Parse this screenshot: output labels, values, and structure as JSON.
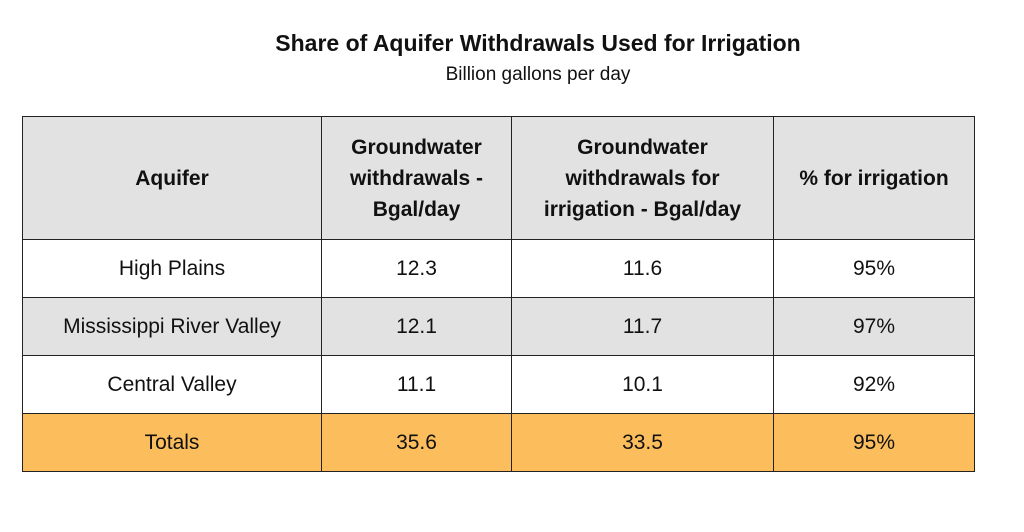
{
  "header": {
    "title": "Share of Aquifer Withdrawals Used for Irrigation",
    "subtitle": "Billion gallons per day"
  },
  "table": {
    "columns": [
      "Aquifer",
      "Groundwater withdrawals - Bgal/day",
      "Groundwater withdrawals for irrigation - Bgal/day",
      "% for irrigation"
    ],
    "rows": [
      [
        "High Plains",
        "12.3",
        "11.6",
        "95%"
      ],
      [
        "Mississippi River Valley",
        "12.1",
        "11.7",
        "97%"
      ],
      [
        "Central Valley",
        "11.1",
        "10.1",
        "92%"
      ]
    ],
    "totals": [
      "Totals",
      "35.6",
      "33.5",
      "95%"
    ]
  }
}
